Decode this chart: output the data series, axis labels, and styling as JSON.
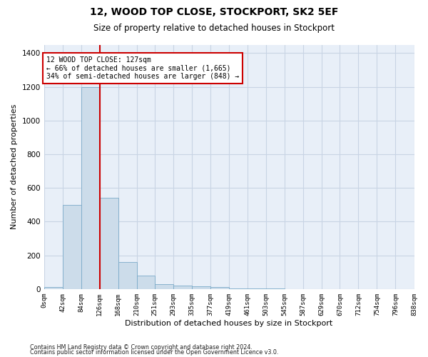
{
  "title": "12, WOOD TOP CLOSE, STOCKPORT, SK2 5EF",
  "subtitle": "Size of property relative to detached houses in Stockport",
  "xlabel": "Distribution of detached houses by size in Stockport",
  "ylabel": "Number of detached properties",
  "footnote1": "Contains HM Land Registry data © Crown copyright and database right 2024.",
  "footnote2": "Contains public sector information licensed under the Open Government Licence v3.0.",
  "bin_labels": [
    "0sqm",
    "42sqm",
    "84sqm",
    "126sqm",
    "168sqm",
    "210sqm",
    "251sqm",
    "293sqm",
    "335sqm",
    "377sqm",
    "419sqm",
    "461sqm",
    "503sqm",
    "545sqm",
    "587sqm",
    "629sqm",
    "670sqm",
    "712sqm",
    "754sqm",
    "796sqm",
    "838sqm"
  ],
  "bin_edges": [
    0,
    42,
    84,
    126,
    168,
    210,
    251,
    293,
    335,
    377,
    419,
    461,
    503,
    545,
    587,
    629,
    670,
    712,
    754,
    796,
    838
  ],
  "bar_heights": [
    10,
    500,
    1200,
    540,
    160,
    80,
    30,
    22,
    15,
    10,
    5,
    3,
    2,
    1,
    1,
    0,
    0,
    0,
    0,
    0
  ],
  "bar_color": "#ccdcea",
  "bar_edgecolor": "#7aaac8",
  "grid_color": "#c8d4e4",
  "bg_color": "#e8eff8",
  "property_size": 127,
  "red_line_color": "#cc0000",
  "annotation_line1": "12 WOOD TOP CLOSE: 127sqm",
  "annotation_line2": "← 66% of detached houses are smaller (1,665)",
  "annotation_line3": "34% of semi-detached houses are larger (848) →",
  "annotation_box_color": "#cc0000",
  "ylim": [
    0,
    1450
  ],
  "yticks": [
    0,
    200,
    400,
    600,
    800,
    1000,
    1200,
    1400
  ]
}
